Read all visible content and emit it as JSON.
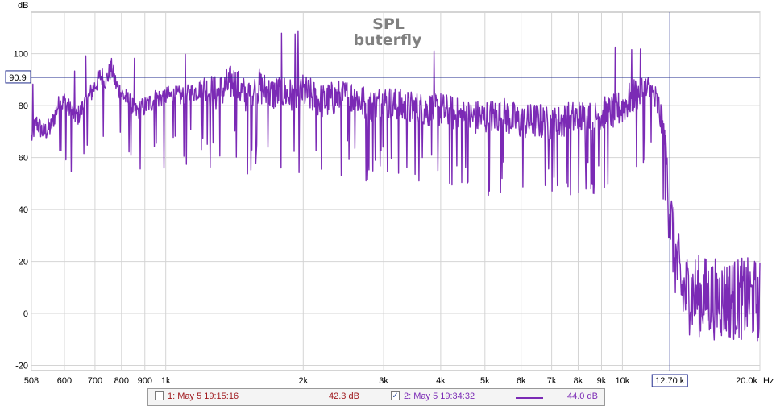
{
  "chart_data": {
    "type": "line",
    "title": "SPL",
    "subtitle": "buterfly",
    "ylabel": "dB",
    "xunit": "Hz",
    "xscale": "log",
    "xlim": [
      508,
      20000
    ],
    "ylim": [
      -22,
      116
    ],
    "grid": true,
    "yticks": [
      -20,
      0,
      20,
      40,
      60,
      80,
      100
    ],
    "ytick_labels": [
      "-20",
      "0",
      "20",
      "40",
      "60",
      "80",
      "100"
    ],
    "xticks": [
      508,
      600,
      700,
      800,
      900,
      1000,
      2000,
      3000,
      4000,
      5000,
      6000,
      7000,
      8000,
      9000,
      10000,
      20000
    ],
    "xtick_labels": [
      "508",
      "600",
      "700",
      "800",
      "900",
      "1k",
      "2k",
      "3k",
      "4k",
      "5k",
      "6k",
      "7k",
      "8k",
      "9k",
      "10k",
      "20.0k"
    ],
    "cursor": {
      "x": 12700,
      "y": 90.9,
      "x_label": "12.70 k",
      "y_label": "90.9"
    },
    "series": [
      {
        "name": "2: May 5 19:34:32",
        "color": "#7b2ab5",
        "x": [
          508,
          520,
          540,
          560,
          580,
          600,
          620,
          640,
          660,
          680,
          700,
          720,
          740,
          760,
          780,
          800,
          830,
          860,
          900,
          950,
          1000,
          1100,
          1200,
          1300,
          1400,
          1500,
          1600,
          1700,
          1800,
          1900,
          2000,
          2200,
          2400,
          2600,
          2800,
          3000,
          3300,
          3600,
          4000,
          4500,
          5000,
          5500,
          6000,
          6500,
          7000,
          7500,
          8000,
          8500,
          9000,
          9500,
          10000,
          10500,
          11000,
          11500,
          12000,
          12300,
          12500,
          12700,
          13000,
          13500,
          14000,
          15000,
          16000,
          17000,
          18000,
          19000,
          20000
        ],
        "y": [
          68,
          74,
          70,
          72,
          80,
          82,
          78,
          76,
          80,
          84,
          88,
          92,
          90,
          95,
          88,
          85,
          82,
          78,
          80,
          83,
          84,
          84,
          87,
          85,
          90,
          84,
          88,
          85,
          86,
          84,
          86,
          82,
          84,
          84,
          80,
          82,
          80,
          79,
          79,
          76,
          76,
          77,
          74,
          75,
          73,
          75,
          76,
          76,
          77,
          78,
          80,
          84,
          86,
          86,
          80,
          70,
          60,
          45,
          30,
          15,
          14,
          13,
          12,
          12,
          12,
          12,
          11
        ],
        "legend_value": "44.0 dB"
      }
    ],
    "legend": {
      "items": [
        {
          "checked": false,
          "label": "1: May 5 19:15:16",
          "value": "42.3 dB",
          "color": "#a0191e"
        },
        {
          "checked": true,
          "label": "2: May 5 19:34:32",
          "value": "44.0 dB",
          "color": "#7b2ab5"
        }
      ]
    }
  }
}
